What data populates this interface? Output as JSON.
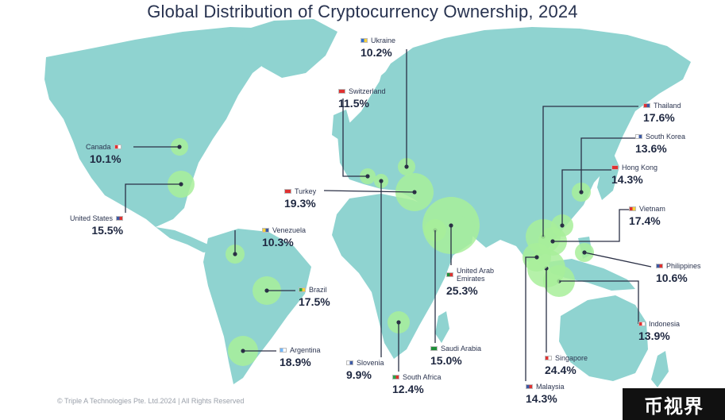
{
  "title": "Global Distribution of Cryptocurrency Ownership, 2024",
  "copyright": "© Triple A Technologies Pte. Ltd.2024 | All Rights Reserved",
  "watermark": "币视界",
  "colors": {
    "land": "#8fd3d0",
    "bubble": "#a8ee9a",
    "line": "#2a2f45",
    "text": "#1f2a44"
  },
  "countries": [
    {
      "id": "ukraine",
      "name": "Ukraine",
      "value": "10.2%",
      "flag": [
        "#2f6fd6",
        "#f6d13c"
      ]
    },
    {
      "id": "switzerland",
      "name": "Switzerland",
      "value": "11.5%",
      "flag": [
        "#e03131",
        "#e03131"
      ]
    },
    {
      "id": "canada",
      "name": "Canada",
      "value": "10.1%",
      "flag": [
        "#e03131",
        "#ffffff"
      ]
    },
    {
      "id": "turkey",
      "name": "Turkey",
      "value": "19.3%",
      "flag": [
        "#e03131",
        "#e03131"
      ]
    },
    {
      "id": "united-states",
      "name": "United States",
      "value": "15.5%",
      "flag": [
        "#3c5aa6",
        "#e03131"
      ]
    },
    {
      "id": "venezuela",
      "name": "Venezuela",
      "value": "10.3%",
      "flag": [
        "#f6d13c",
        "#3c5aa6"
      ]
    },
    {
      "id": "brazil",
      "name": "Brazil",
      "value": "17.5%",
      "flag": [
        "#2aa64a",
        "#f6d13c"
      ]
    },
    {
      "id": "argentina",
      "name": "Argentina",
      "value": "18.9%",
      "flag": [
        "#74b9ff",
        "#ffffff"
      ]
    },
    {
      "id": "slovenia",
      "name": "Slovenia",
      "value": "9.9%",
      "flag": [
        "#ffffff",
        "#3c5aa6"
      ]
    },
    {
      "id": "south-africa",
      "name": "South Africa",
      "value": "12.4%",
      "flag": [
        "#2aa64a",
        "#e03131"
      ]
    },
    {
      "id": "saudi-arabia",
      "name": "Saudi Arabia",
      "value": "15.0%",
      "flag": [
        "#1f8f3a",
        "#1f8f3a"
      ]
    },
    {
      "id": "uae",
      "name": "United Arab\nEmirates",
      "value": "25.3%",
      "flag": [
        "#1f8f3a",
        "#e03131"
      ]
    },
    {
      "id": "thailand",
      "name": "Thailand",
      "value": "17.6%",
      "flag": [
        "#e03131",
        "#3c5aa6"
      ]
    },
    {
      "id": "south-korea",
      "name": "South Korea",
      "value": "13.6%",
      "flag": [
        "#ffffff",
        "#3c5aa6"
      ]
    },
    {
      "id": "hong-kong",
      "name": "Hong Kong",
      "value": "14.3%",
      "flag": [
        "#e03131",
        "#e03131"
      ]
    },
    {
      "id": "vietnam",
      "name": "Vietnam",
      "value": "17.4%",
      "flag": [
        "#e03131",
        "#f6d13c"
      ]
    },
    {
      "id": "philippines",
      "name": "Philippines",
      "value": "10.6%",
      "flag": [
        "#3c5aa6",
        "#e03131"
      ]
    },
    {
      "id": "indonesia",
      "name": "Indonesia",
      "value": "13.9%",
      "flag": [
        "#e03131",
        "#ffffff"
      ]
    },
    {
      "id": "singapore",
      "name": "Singapore",
      "value": "24.4%",
      "flag": [
        "#e03131",
        "#ffffff"
      ]
    },
    {
      "id": "malaysia",
      "name": "Malaysia",
      "value": "14.3%",
      "flag": [
        "#3c5aa6",
        "#e03131"
      ]
    }
  ]
}
